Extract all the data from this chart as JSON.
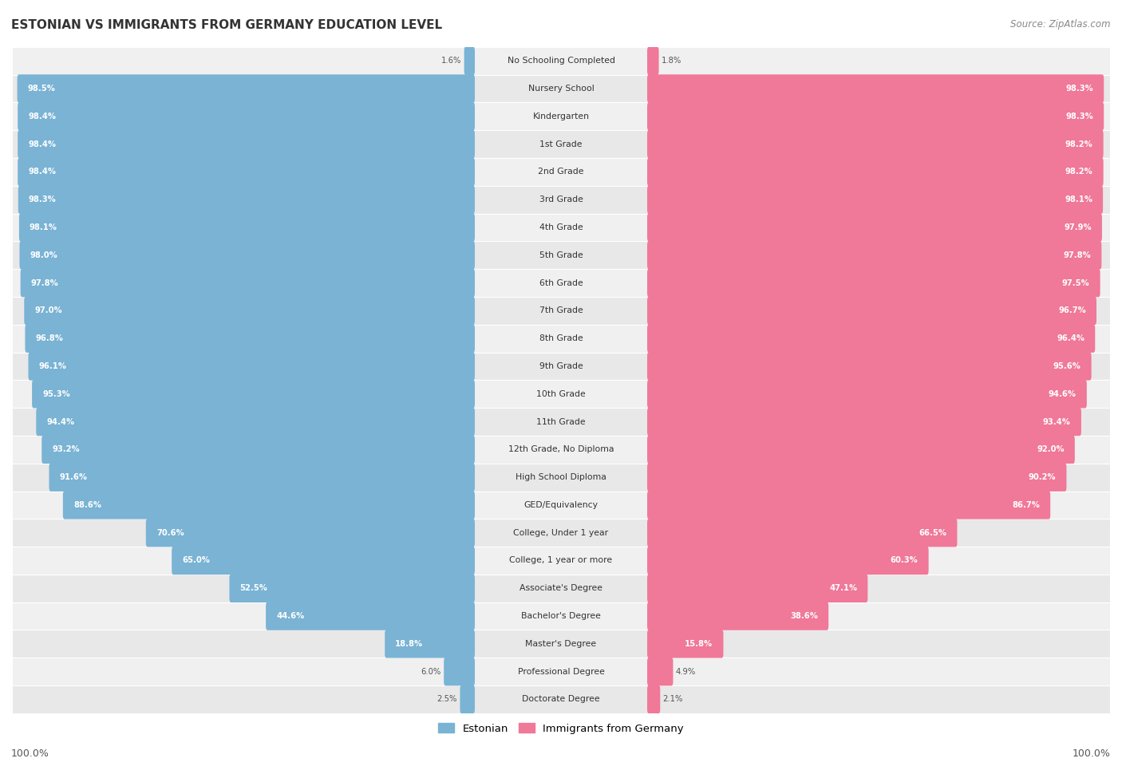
{
  "title": "Estonian vs Immigrants from Germany Education Level",
  "source": "Source: ZipAtlas.com",
  "categories": [
    "No Schooling Completed",
    "Nursery School",
    "Kindergarten",
    "1st Grade",
    "2nd Grade",
    "3rd Grade",
    "4th Grade",
    "5th Grade",
    "6th Grade",
    "7th Grade",
    "8th Grade",
    "9th Grade",
    "10th Grade",
    "11th Grade",
    "12th Grade, No Diploma",
    "High School Diploma",
    "GED/Equivalency",
    "College, Under 1 year",
    "College, 1 year or more",
    "Associate's Degree",
    "Bachelor's Degree",
    "Master's Degree",
    "Professional Degree",
    "Doctorate Degree"
  ],
  "estonian": [
    1.6,
    98.5,
    98.4,
    98.4,
    98.4,
    98.3,
    98.1,
    98.0,
    97.8,
    97.0,
    96.8,
    96.1,
    95.3,
    94.4,
    93.2,
    91.6,
    88.6,
    70.6,
    65.0,
    52.5,
    44.6,
    18.8,
    6.0,
    2.5
  ],
  "germany": [
    1.8,
    98.3,
    98.3,
    98.2,
    98.2,
    98.1,
    97.9,
    97.8,
    97.5,
    96.7,
    96.4,
    95.6,
    94.6,
    93.4,
    92.0,
    90.2,
    86.7,
    66.5,
    60.3,
    47.1,
    38.6,
    15.8,
    4.9,
    2.1
  ],
  "estonian_color": "#7ab3d4",
  "germany_color": "#f07898",
  "row_light": "#f0f0f0",
  "row_dark": "#e8e8e8",
  "legend_estonian": "Estonian",
  "legend_germany": "Immigrants from Germany",
  "left_label": "100.0%",
  "right_label": "100.0%",
  "title_display": "ESTONIAN VS IMMIGRANTS FROM GERMANY EDUCATION LEVEL"
}
